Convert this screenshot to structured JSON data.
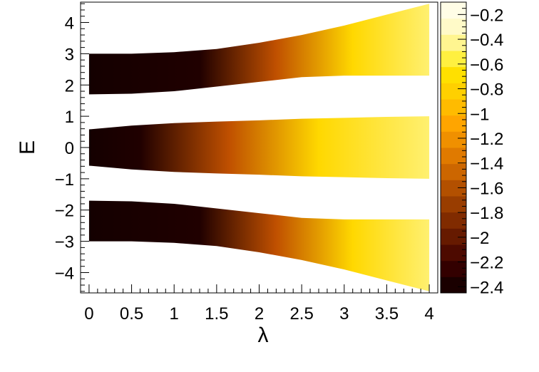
{
  "chart_data": {
    "type": "heatmap",
    "title": "",
    "xlabel": "λ",
    "ylabel": "E",
    "xlim": [
      -0.1,
      4.1
    ],
    "ylim": [
      -4.65,
      4.65
    ],
    "x_ticks": [
      "0",
      "0.5",
      "1",
      "1.5",
      "2",
      "2.5",
      "3",
      "3.5",
      "4"
    ],
    "y_ticks": [
      "4",
      "3",
      "2",
      "1",
      "0",
      "−1",
      "−2",
      "−3",
      "−4"
    ],
    "colorbar": {
      "min": -2.45,
      "max": -0.1,
      "ticks": [
        "−0.2",
        "−0.4",
        "−0.6",
        "−0.8",
        "−1",
        "−1.2",
        "−1.4",
        "−1.6",
        "−1.8",
        "−2",
        "−2.2",
        "−2.4"
      ],
      "palette": [
        "#1a0000",
        "#330000",
        "#4d0a00",
        "#661a00",
        "#802b00",
        "#993d00",
        "#b35000",
        "#cc6600",
        "#e07a00",
        "#f09000",
        "#ffa500",
        "#ffbb00",
        "#ffd000",
        "#ffe000",
        "#fff040",
        "#fff590",
        "#fffac8",
        "#fffde6"
      ]
    },
    "grid": false,
    "bands": [
      {
        "outer": [
          [
            0,
            3.0
          ],
          [
            0.5,
            3.0
          ],
          [
            1,
            3.05
          ],
          [
            1.5,
            3.15
          ],
          [
            2,
            3.35
          ],
          [
            2.5,
            3.6
          ],
          [
            3,
            3.9
          ],
          [
            3.5,
            4.25
          ],
          [
            4,
            4.6
          ]
        ],
        "inner": [
          [
            0,
            1.7
          ],
          [
            0.5,
            1.72
          ],
          [
            1,
            1.8
          ],
          [
            1.5,
            1.95
          ],
          [
            2,
            2.1
          ],
          [
            2.5,
            2.25
          ],
          [
            3,
            2.3
          ],
          [
            3.5,
            2.3
          ],
          [
            4,
            2.3
          ]
        ],
        "fade_start": 1.3,
        "fade_end": 3.1
      },
      {
        "outer": [
          [
            0,
            0.58
          ],
          [
            0.5,
            0.7
          ],
          [
            1,
            0.78
          ],
          [
            1.5,
            0.83
          ],
          [
            2,
            0.87
          ],
          [
            2.5,
            0.92
          ],
          [
            3,
            0.95
          ],
          [
            3.5,
            0.98
          ],
          [
            4,
            1.0
          ]
        ],
        "inner": [
          [
            0,
            -0.58
          ],
          [
            0.5,
            -0.7
          ],
          [
            1,
            -0.78
          ],
          [
            1.5,
            -0.83
          ],
          [
            2,
            -0.87
          ],
          [
            2.5,
            -0.92
          ],
          [
            3,
            -0.95
          ],
          [
            3.5,
            -0.98
          ],
          [
            4,
            -1.0
          ]
        ],
        "fade_start": 0.6,
        "fade_end": 2.7
      },
      {
        "outer": [
          [
            0,
            -3.0
          ],
          [
            0.5,
            -3.0
          ],
          [
            1,
            -3.05
          ],
          [
            1.5,
            -3.15
          ],
          [
            2,
            -3.35
          ],
          [
            2.5,
            -3.6
          ],
          [
            3,
            -3.9
          ],
          [
            3.5,
            -4.25
          ],
          [
            4,
            -4.6
          ]
        ],
        "inner": [
          [
            0,
            -1.7
          ],
          [
            0.5,
            -1.72
          ],
          [
            1,
            -1.8
          ],
          [
            1.5,
            -1.95
          ],
          [
            2,
            -2.1
          ],
          [
            2.5,
            -2.25
          ],
          [
            3,
            -2.3
          ],
          [
            3.5,
            -2.3
          ],
          [
            4,
            -2.3
          ]
        ],
        "fade_start": 1.3,
        "fade_end": 3.1
      }
    ]
  }
}
